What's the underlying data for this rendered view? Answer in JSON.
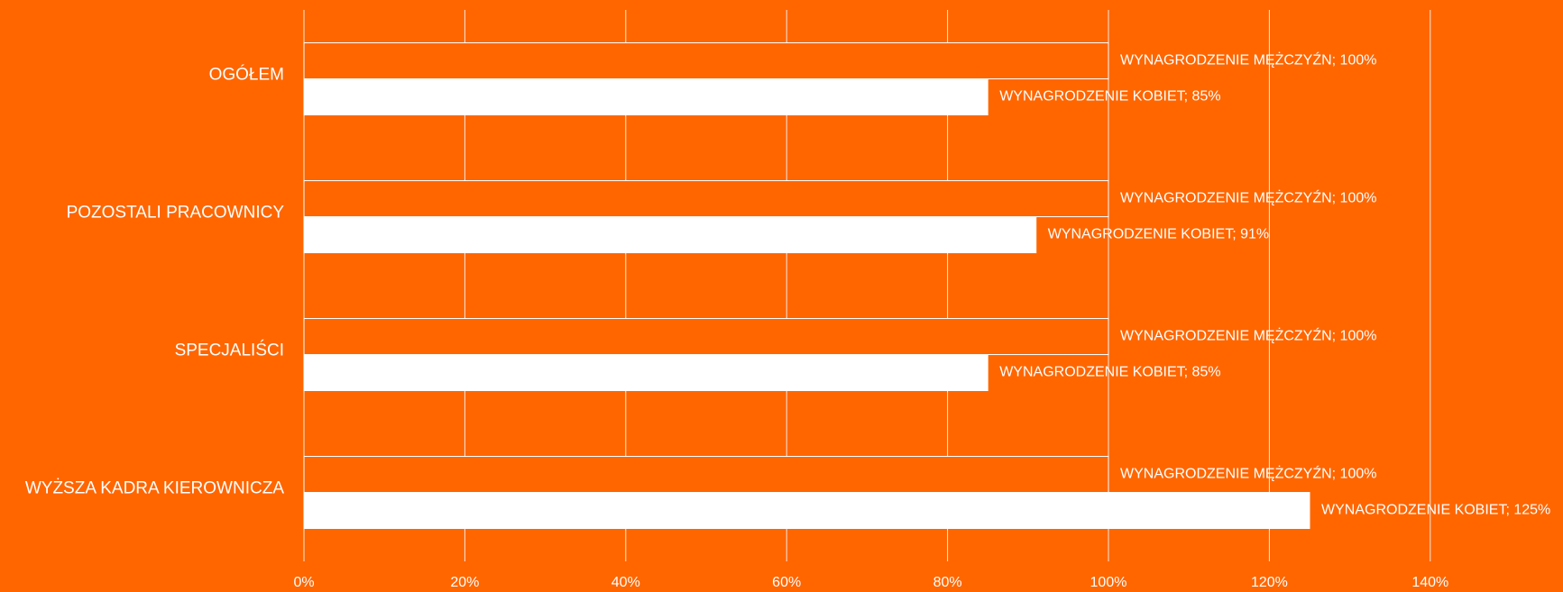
{
  "chart_data": {
    "type": "hbar",
    "categories": [
      "OGÓŁEM",
      "POZOSTALI PRACOWNICY",
      "SPECJALIŚCI",
      "WYŻSZA KADRA KIEROWNICZA"
    ],
    "series": [
      {
        "color": "#ff6600",
        "values": [
          100,
          100,
          100,
          100
        ],
        "value_labels": [
          "WYNAGRODZENIE MĘŻCZYŹN; 100%",
          "WYNAGRODZENIE MĘŻCZYŹN; 100%",
          "WYNAGRODZENIE MĘŻCZYŹN; 100%",
          "WYNAGRODZENIE MĘŻCZYŹN; 100%"
        ]
      },
      {
        "color": "#ffffff",
        "values": [
          85,
          91,
          85,
          125
        ],
        "value_labels": [
          "WYNAGRODZENIE KOBIET; 85%",
          "WYNAGRODZENIE KOBIET; 91%",
          "WYNAGRODZENIE KOBIET; 85%",
          "WYNAGRODZENIE KOBIET; 125%"
        ]
      }
    ],
    "xlim": [
      0,
      150
    ],
    "xticks": [
      {
        "value": 0,
        "label": "0%"
      },
      {
        "value": 20,
        "label": "20%"
      },
      {
        "value": 40,
        "label": "40%"
      },
      {
        "value": 60,
        "label": "60%"
      },
      {
        "value": 80,
        "label": "80%"
      },
      {
        "value": 100,
        "label": "100%"
      },
      {
        "value": 120,
        "label": "120%"
      },
      {
        "value": 140,
        "label": "140%"
      }
    ],
    "grid": true,
    "background": "#ff6600"
  }
}
